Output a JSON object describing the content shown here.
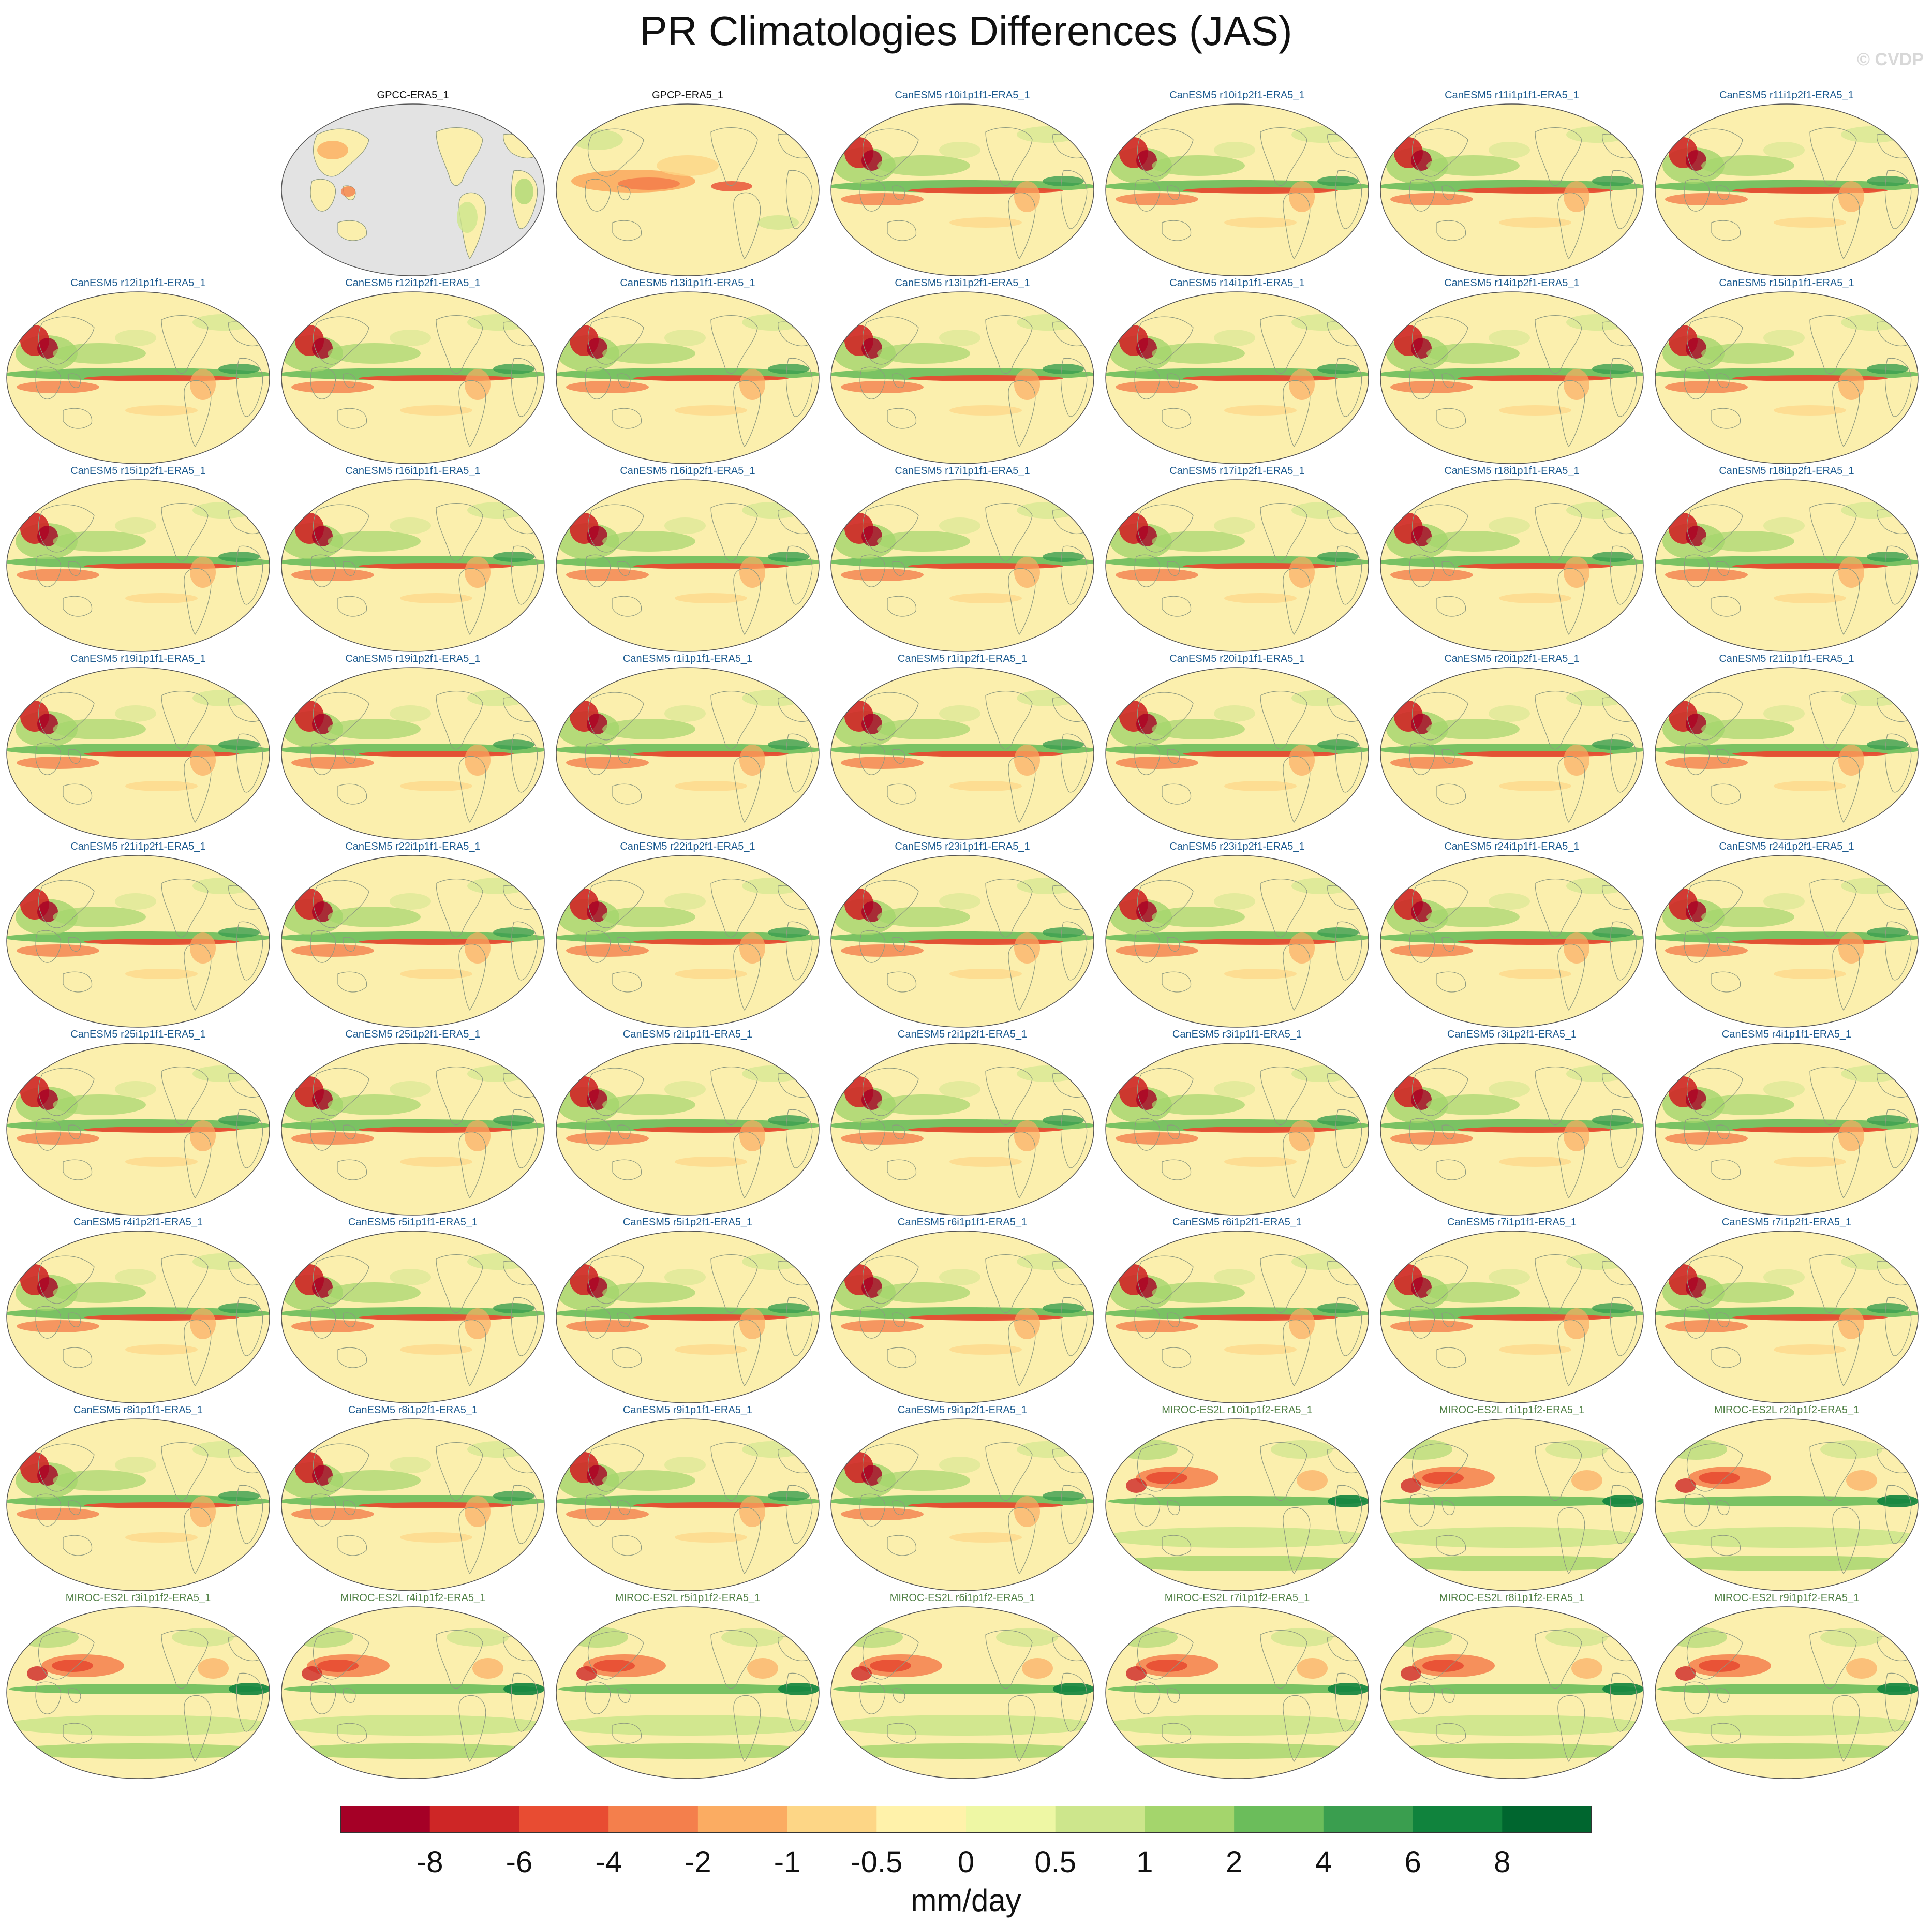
{
  "title": "PR Climatologies Differences (JAS)",
  "watermark": "© CVDP",
  "colorbar": {
    "units": "mm/day",
    "tick_labels": [
      "-8",
      "-6",
      "-4",
      "-2",
      "-1",
      "-0.5",
      "0",
      "0.5",
      "1",
      "2",
      "4",
      "6",
      "8"
    ],
    "colors": [
      "#a50026",
      "#ce2626",
      "#e84c32",
      "#f47f4c",
      "#fbac62",
      "#fdd686",
      "#fff2aa",
      "#eef7a4",
      "#cde68c",
      "#a4d56c",
      "#6bbd5b",
      "#3a9e4f",
      "#10833d",
      "#00662f"
    ]
  },
  "colors": {
    "ocean": "#fbefad",
    "land_edge": "#8f9a80",
    "missing": "#e3e3e3",
    "obs_title": "#111111",
    "canesm_title": "#1b5a8f",
    "miroc_title": "#4f7f44"
  },
  "panels": [
    {
      "title": "GPCC-ERA5_1",
      "group": "obs",
      "style": "gpcc"
    },
    {
      "title": "GPCP-ERA5_1",
      "group": "obs",
      "style": "gpcp"
    },
    {
      "title": "CanESM5 r10i1p1f1-ERA5_1",
      "group": "can"
    },
    {
      "title": "CanESM5 r10i1p2f1-ERA5_1",
      "group": "can"
    },
    {
      "title": "CanESM5 r11i1p1f1-ERA5_1",
      "group": "can"
    },
    {
      "title": "CanESM5 r11i1p2f1-ERA5_1",
      "group": "can"
    },
    {
      "title": "CanESM5 r12i1p1f1-ERA5_1",
      "group": "can"
    },
    {
      "title": "CanESM5 r12i1p2f1-ERA5_1",
      "group": "can"
    },
    {
      "title": "CanESM5 r13i1p1f1-ERA5_1",
      "group": "can"
    },
    {
      "title": "CanESM5 r13i1p2f1-ERA5_1",
      "group": "can"
    },
    {
      "title": "CanESM5 r14i1p1f1-ERA5_1",
      "group": "can"
    },
    {
      "title": "CanESM5 r14i1p2f1-ERA5_1",
      "group": "can"
    },
    {
      "title": "CanESM5 r15i1p1f1-ERA5_1",
      "group": "can"
    },
    {
      "title": "CanESM5 r15i1p2f1-ERA5_1",
      "group": "can"
    },
    {
      "title": "CanESM5 r16i1p1f1-ERA5_1",
      "group": "can"
    },
    {
      "title": "CanESM5 r16i1p2f1-ERA5_1",
      "group": "can"
    },
    {
      "title": "CanESM5 r17i1p1f1-ERA5_1",
      "group": "can"
    },
    {
      "title": "CanESM5 r17i1p2f1-ERA5_1",
      "group": "can"
    },
    {
      "title": "CanESM5 r18i1p1f1-ERA5_1",
      "group": "can"
    },
    {
      "title": "CanESM5 r18i1p2f1-ERA5_1",
      "group": "can"
    },
    {
      "title": "CanESM5 r19i1p1f1-ERA5_1",
      "group": "can"
    },
    {
      "title": "CanESM5 r19i1p2f1-ERA5_1",
      "group": "can"
    },
    {
      "title": "CanESM5 r1i1p1f1-ERA5_1",
      "group": "can"
    },
    {
      "title": "CanESM5 r1i1p2f1-ERA5_1",
      "group": "can"
    },
    {
      "title": "CanESM5 r20i1p1f1-ERA5_1",
      "group": "can"
    },
    {
      "title": "CanESM5 r20i1p2f1-ERA5_1",
      "group": "can"
    },
    {
      "title": "CanESM5 r21i1p1f1-ERA5_1",
      "group": "can"
    },
    {
      "title": "CanESM5 r21i1p2f1-ERA5_1",
      "group": "can"
    },
    {
      "title": "CanESM5 r22i1p1f1-ERA5_1",
      "group": "can"
    },
    {
      "title": "CanESM5 r22i1p2f1-ERA5_1",
      "group": "can"
    },
    {
      "title": "CanESM5 r23i1p1f1-ERA5_1",
      "group": "can"
    },
    {
      "title": "CanESM5 r23i1p2f1-ERA5_1",
      "group": "can"
    },
    {
      "title": "CanESM5 r24i1p1f1-ERA5_1",
      "group": "can"
    },
    {
      "title": "CanESM5 r24i1p2f1-ERA5_1",
      "group": "can"
    },
    {
      "title": "CanESM5 r25i1p1f1-ERA5_1",
      "group": "can"
    },
    {
      "title": "CanESM5 r25i1p2f1-ERA5_1",
      "group": "can"
    },
    {
      "title": "CanESM5 r2i1p1f1-ERA5_1",
      "group": "can"
    },
    {
      "title": "CanESM5 r2i1p2f1-ERA5_1",
      "group": "can"
    },
    {
      "title": "CanESM5 r3i1p1f1-ERA5_1",
      "group": "can"
    },
    {
      "title": "CanESM5 r3i1p2f1-ERA5_1",
      "group": "can"
    },
    {
      "title": "CanESM5 r4i1p1f1-ERA5_1",
      "group": "can"
    },
    {
      "title": "CanESM5 r4i1p2f1-ERA5_1",
      "group": "can"
    },
    {
      "title": "CanESM5 r5i1p1f1-ERA5_1",
      "group": "can"
    },
    {
      "title": "CanESM5 r5i1p2f1-ERA5_1",
      "group": "can"
    },
    {
      "title": "CanESM5 r6i1p1f1-ERA5_1",
      "group": "can"
    },
    {
      "title": "CanESM5 r6i1p2f1-ERA5_1",
      "group": "can"
    },
    {
      "title": "CanESM5 r7i1p1f1-ERA5_1",
      "group": "can"
    },
    {
      "title": "CanESM5 r7i1p2f1-ERA5_1",
      "group": "can"
    },
    {
      "title": "CanESM5 r8i1p1f1-ERA5_1",
      "group": "can"
    },
    {
      "title": "CanESM5 r8i1p2f1-ERA5_1",
      "group": "can"
    },
    {
      "title": "CanESM5 r9i1p1f1-ERA5_1",
      "group": "can"
    },
    {
      "title": "CanESM5 r9i1p2f1-ERA5_1",
      "group": "can"
    },
    {
      "title": "MIROC-ES2L r10i1p1f2-ERA5_1",
      "group": "mir"
    },
    {
      "title": "MIROC-ES2L r1i1p1f2-ERA5_1",
      "group": "mir"
    },
    {
      "title": "MIROC-ES2L r2i1p1f2-ERA5_1",
      "group": "mir"
    },
    {
      "title": "MIROC-ES2L r3i1p1f2-ERA5_1",
      "group": "mir"
    },
    {
      "title": "MIROC-ES2L r4i1p1f2-ERA5_1",
      "group": "mir"
    },
    {
      "title": "MIROC-ES2L r5i1p1f2-ERA5_1",
      "group": "mir"
    },
    {
      "title": "MIROC-ES2L r6i1p1f2-ERA5_1",
      "group": "mir"
    },
    {
      "title": "MIROC-ES2L r7i1p1f2-ERA5_1",
      "group": "mir"
    },
    {
      "title": "MIROC-ES2L r8i1p1f2-ERA5_1",
      "group": "mir"
    },
    {
      "title": "MIROC-ES2L r9i1p1f2-ERA5_1",
      "group": "mir"
    }
  ]
}
